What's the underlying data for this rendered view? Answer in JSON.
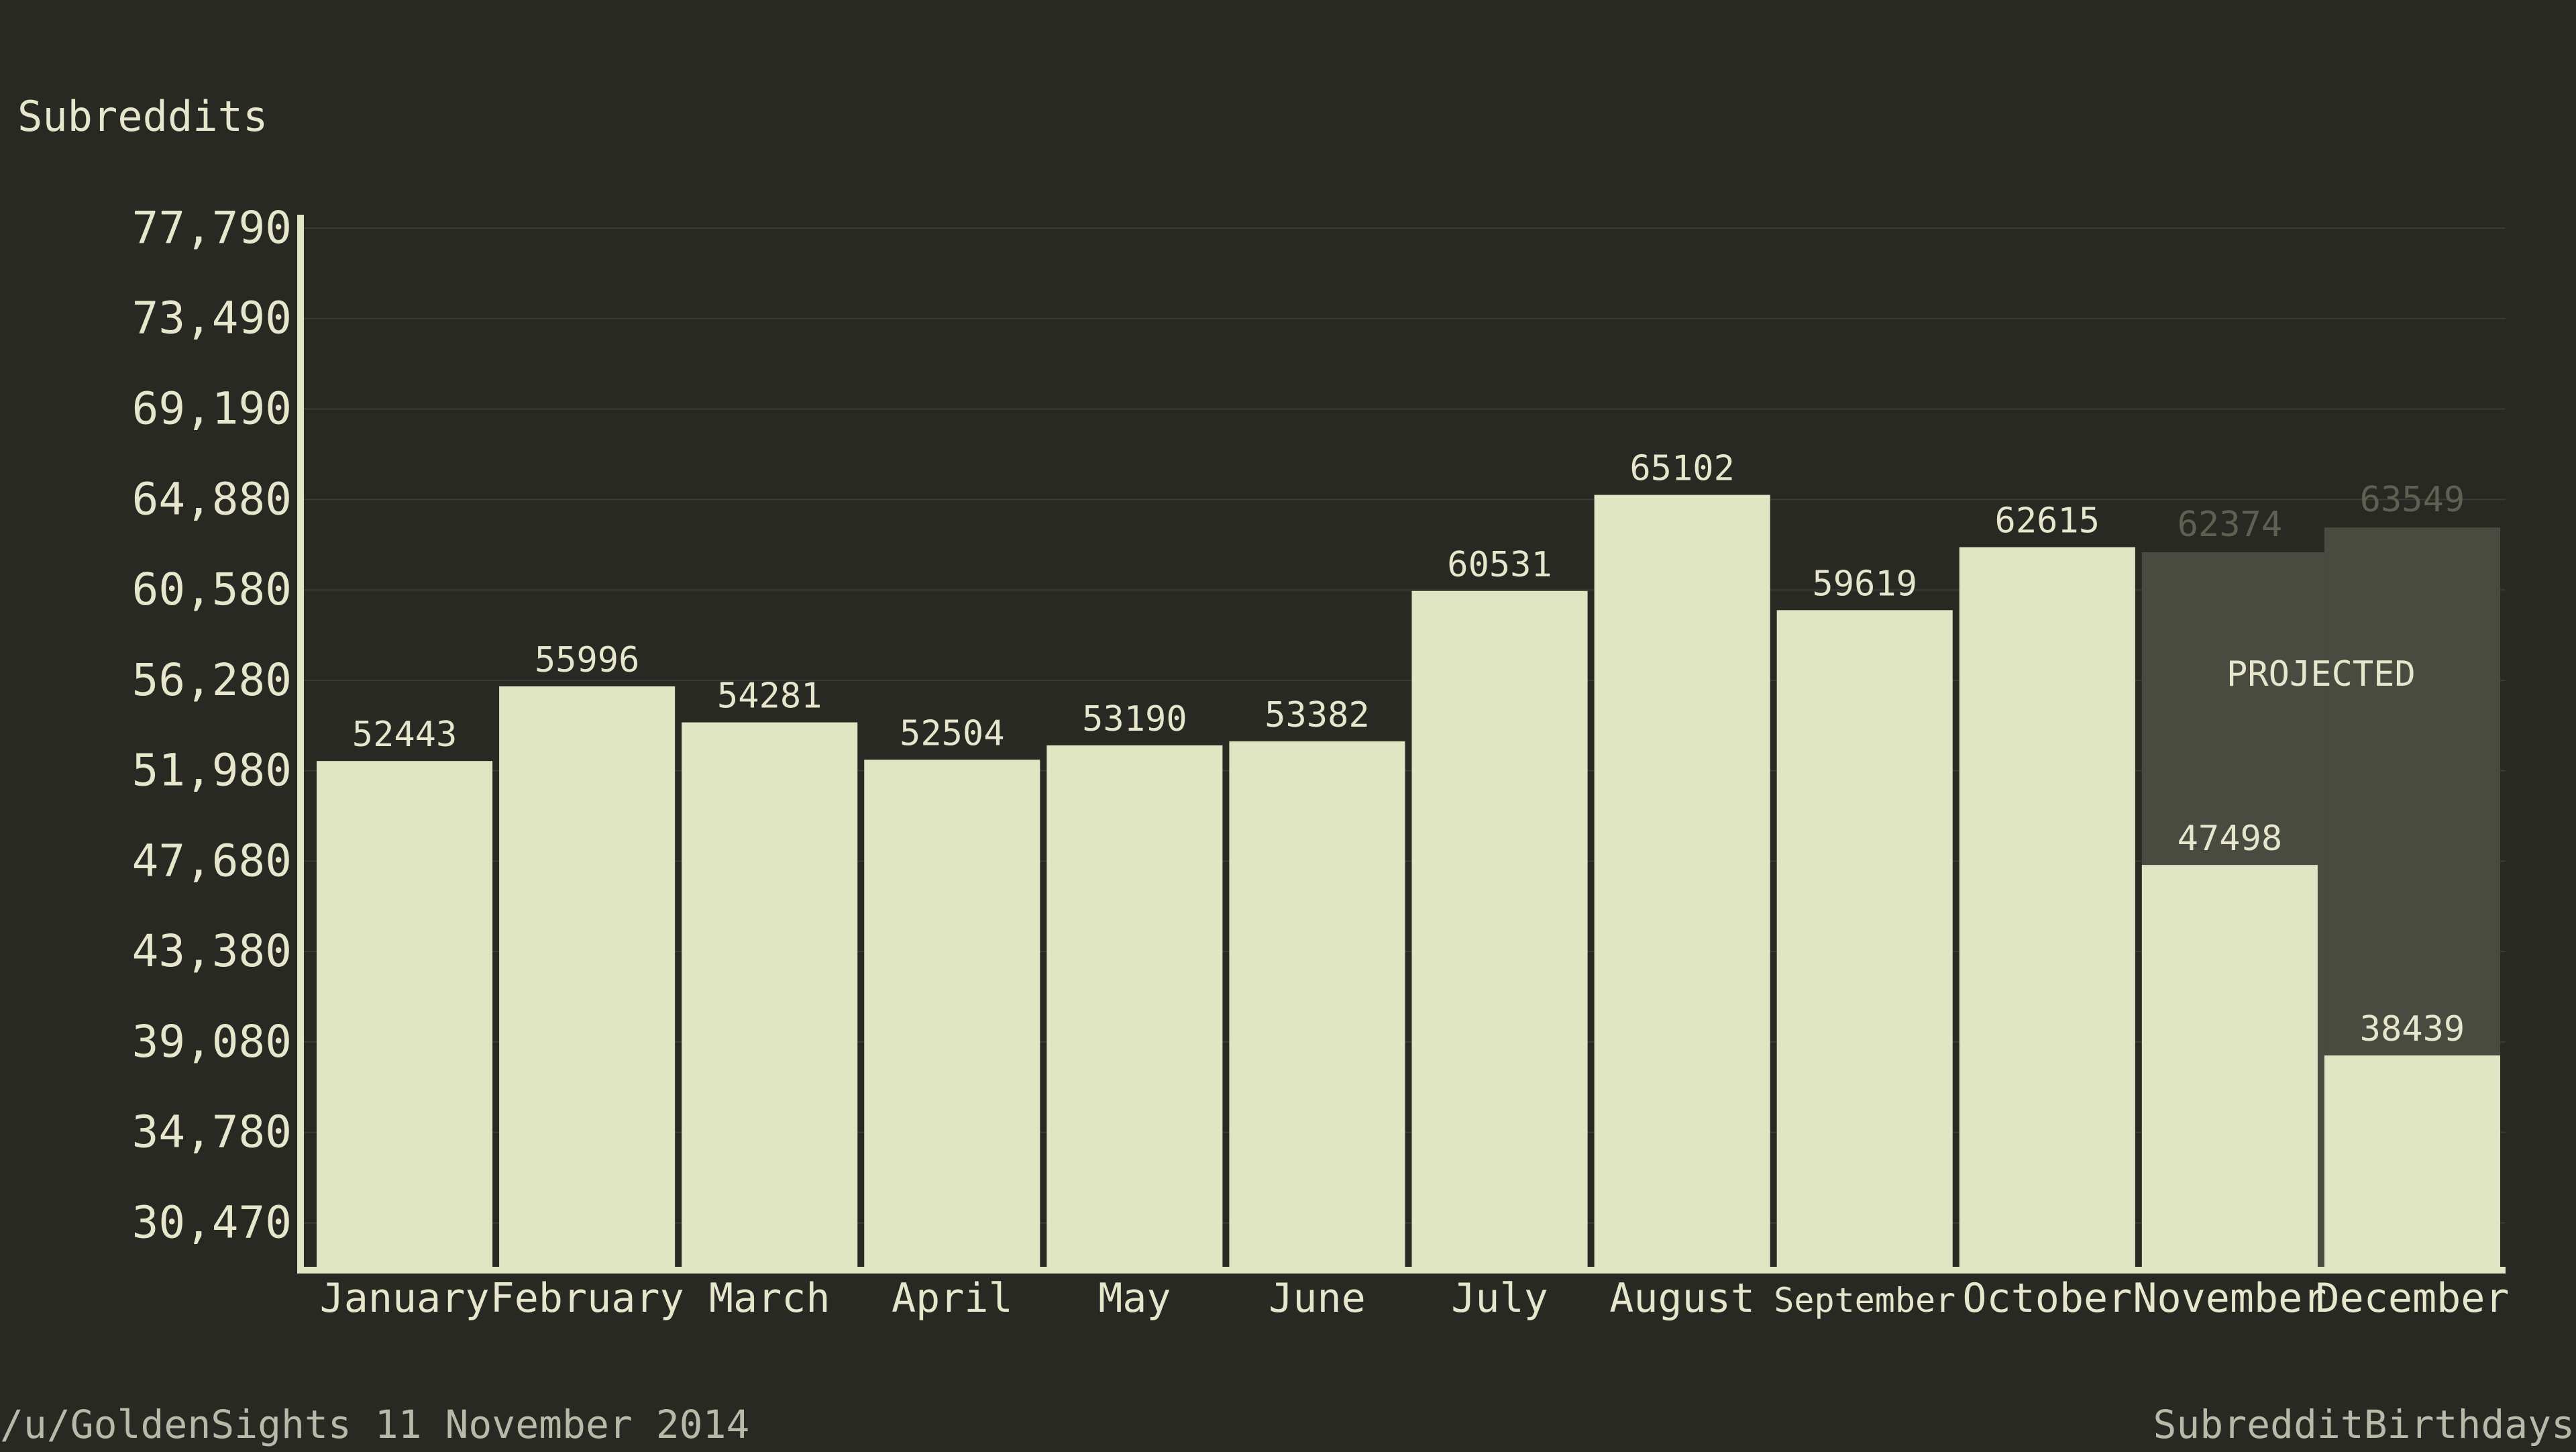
{
  "colors": {
    "background": "#282923",
    "bar": "#e0e5c3",
    "projected_bar": "#4a4b40",
    "projected_label": "#5f6052",
    "axis": "#e0e5c3",
    "text": "#e6e6cc",
    "grid": "#3b3c35"
  },
  "footer": {
    "left": "/u/GoldenSights 11 November 2014",
    "right": "SubredditBirthdays"
  },
  "chart_data": {
    "type": "bar",
    "title": "",
    "ylabel": "Subreddits",
    "xlabel": "",
    "ylim": [
      28320,
      77790
    ],
    "yticks": [
      30470,
      34780,
      39080,
      43380,
      47680,
      51980,
      56280,
      60580,
      64880,
      69190,
      73490,
      77790
    ],
    "ytick_labels": [
      "30,470",
      "34,780",
      "39,080",
      "43,380",
      "47,680",
      "51,980",
      "56,280",
      "60,580",
      "64,880",
      "69,190",
      "73,490",
      "77,790"
    ],
    "grid": true,
    "categories": [
      "January",
      "February",
      "March",
      "April",
      "May",
      "June",
      "July",
      "August",
      "September",
      "October",
      "November",
      "December"
    ],
    "values": [
      52443,
      55996,
      54281,
      52504,
      53190,
      53382,
      60531,
      65102,
      59619,
      62615,
      47498,
      38439
    ],
    "projected": {
      "label": "PROJECTED",
      "categories": [
        "November",
        "December"
      ],
      "values": [
        62374,
        63549
      ]
    }
  }
}
